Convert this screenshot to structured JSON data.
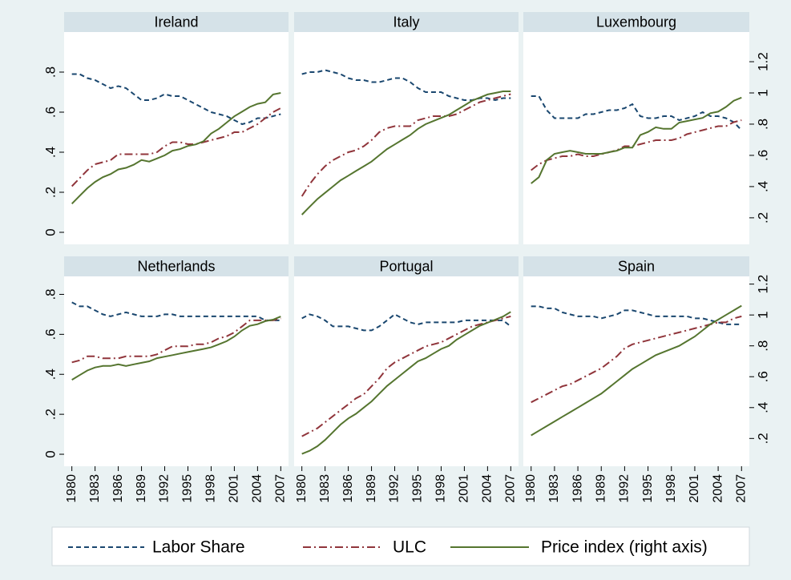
{
  "chart_data": [
    {
      "type": "line",
      "title": "Ireland",
      "x": [
        1980,
        1981,
        1982,
        1983,
        1984,
        1985,
        1986,
        1987,
        1988,
        1989,
        1990,
        1991,
        1992,
        1993,
        1994,
        1995,
        1996,
        1997,
        1998,
        1999,
        2000,
        2001,
        2002,
        2003,
        2004,
        2005,
        2006,
        2007
      ],
      "xlim": [
        1979,
        2008
      ],
      "ylim": [
        -0.06,
        1.0
      ],
      "y2lim": [
        0.03,
        1.39
      ],
      "yticks": [
        0,
        {
          "value": 0.2,
          "label": ".2"
        },
        {
          "value": 0.4,
          "label": ".4"
        },
        {
          "value": 0.6,
          "label": ".6"
        },
        {
          "value": 0.8,
          "label": ".8"
        }
      ],
      "series": [
        {
          "name": "Labor Share",
          "color": "#1a476f",
          "values": [
            0.79,
            0.79,
            0.77,
            0.76,
            0.74,
            0.72,
            0.73,
            0.72,
            0.69,
            0.66,
            0.66,
            0.67,
            0.69,
            0.68,
            0.68,
            0.66,
            0.64,
            0.62,
            0.6,
            0.59,
            0.58,
            0.56,
            0.54,
            0.55,
            0.57,
            0.57,
            0.58,
            0.59
          ]
        },
        {
          "name": "ULC",
          "color": "#90353b",
          "values": [
            0.23,
            0.27,
            0.31,
            0.34,
            0.35,
            0.36,
            0.39,
            0.39,
            0.39,
            0.39,
            0.39,
            0.4,
            0.43,
            0.45,
            0.45,
            0.44,
            0.44,
            0.45,
            0.46,
            0.47,
            0.48,
            0.5,
            0.5,
            0.52,
            0.54,
            0.57,
            0.6,
            0.62
          ]
        },
        {
          "name": "Price index (right axis)",
          "color": "#55752f",
          "axis": "y2",
          "values": [
            0.29,
            0.34,
            0.39,
            0.43,
            0.46,
            0.48,
            0.51,
            0.52,
            0.54,
            0.57,
            0.56,
            0.58,
            0.6,
            0.63,
            0.64,
            0.66,
            0.67,
            0.69,
            0.74,
            0.77,
            0.81,
            0.85,
            0.88,
            0.91,
            0.93,
            0.94,
            0.99,
            1.0
          ]
        }
      ]
    },
    {
      "type": "line",
      "title": "Italy",
      "x": [
        1980,
        1981,
        1982,
        1983,
        1984,
        1985,
        1986,
        1987,
        1988,
        1989,
        1990,
        1991,
        1992,
        1993,
        1994,
        1995,
        1996,
        1997,
        1998,
        1999,
        2000,
        2001,
        2002,
        2003,
        2004,
        2005,
        2006,
        2007
      ],
      "xlim": [
        1979,
        2008
      ],
      "ylim": [
        -0.06,
        1.0
      ],
      "y2lim": [
        0.03,
        1.39
      ],
      "series": [
        {
          "name": "Labor Share",
          "color": "#1a476f",
          "values": [
            0.79,
            0.8,
            0.8,
            0.81,
            0.8,
            0.79,
            0.77,
            0.76,
            0.76,
            0.75,
            0.75,
            0.76,
            0.77,
            0.77,
            0.75,
            0.72,
            0.7,
            0.7,
            0.7,
            0.68,
            0.67,
            0.66,
            0.66,
            0.67,
            0.67,
            0.66,
            0.67,
            0.67
          ]
        },
        {
          "name": "ULC",
          "color": "#90353b",
          "values": [
            0.18,
            0.24,
            0.29,
            0.33,
            0.36,
            0.38,
            0.4,
            0.41,
            0.43,
            0.46,
            0.5,
            0.52,
            0.53,
            0.53,
            0.53,
            0.56,
            0.57,
            0.58,
            0.58,
            0.58,
            0.59,
            0.61,
            0.63,
            0.65,
            0.66,
            0.67,
            0.68,
            0.69
          ]
        },
        {
          "name": "Price index (right axis)",
          "color": "#55752f",
          "axis": "y2",
          "values": [
            0.22,
            0.27,
            0.32,
            0.36,
            0.4,
            0.44,
            0.47,
            0.5,
            0.53,
            0.56,
            0.6,
            0.64,
            0.67,
            0.7,
            0.73,
            0.77,
            0.8,
            0.82,
            0.84,
            0.86,
            0.89,
            0.92,
            0.95,
            0.97,
            0.99,
            1.0,
            1.01,
            1.01
          ]
        }
      ]
    },
    {
      "type": "line",
      "title": "Luxembourg",
      "x": [
        1980,
        1981,
        1982,
        1983,
        1984,
        1985,
        1986,
        1987,
        1988,
        1989,
        1990,
        1991,
        1992,
        1993,
        1994,
        1995,
        1996,
        1997,
        1998,
        1999,
        2000,
        2001,
        2002,
        2003,
        2004,
        2005,
        2006,
        2007
      ],
      "xlim": [
        1979,
        2008
      ],
      "ylim": [
        -0.06,
        1.0
      ],
      "y2lim": [
        0.03,
        1.39
      ],
      "y2ticks": [
        {
          "value": 0.2,
          "label": ".2"
        },
        {
          "value": 0.4,
          "label": ".4"
        },
        {
          "value": 0.6,
          "label": ".6"
        },
        {
          "value": 0.8,
          "label": ".8"
        },
        1,
        1.2
      ],
      "series": [
        {
          "name": "Labor Share",
          "color": "#1a476f",
          "values": [
            0.68,
            0.68,
            0.61,
            0.57,
            0.57,
            0.57,
            0.57,
            0.59,
            0.59,
            0.6,
            0.61,
            0.61,
            0.62,
            0.64,
            0.58,
            0.57,
            0.57,
            0.58,
            0.58,
            0.56,
            0.57,
            0.58,
            0.6,
            0.58,
            0.58,
            0.57,
            0.55,
            0.51
          ]
        },
        {
          "name": "ULC",
          "color": "#90353b",
          "values": [
            0.31,
            0.34,
            0.36,
            0.37,
            0.38,
            0.38,
            0.39,
            0.38,
            0.38,
            0.39,
            0.4,
            0.41,
            0.43,
            0.43,
            0.44,
            0.45,
            0.46,
            0.46,
            0.46,
            0.47,
            0.49,
            0.5,
            0.51,
            0.52,
            0.53,
            0.53,
            0.55,
            0.56
          ]
        },
        {
          "name": "Price index (right axis)",
          "color": "#55752f",
          "axis": "y2",
          "values": [
            0.42,
            0.46,
            0.57,
            0.61,
            0.62,
            0.63,
            0.62,
            0.61,
            0.61,
            0.61,
            0.62,
            0.63,
            0.65,
            0.65,
            0.73,
            0.75,
            0.78,
            0.77,
            0.77,
            0.81,
            0.82,
            0.83,
            0.84,
            0.87,
            0.88,
            0.91,
            0.95,
            0.97
          ]
        }
      ]
    },
    {
      "type": "line",
      "title": "Netherlands",
      "x": [
        1980,
        1981,
        1982,
        1983,
        1984,
        1985,
        1986,
        1987,
        1988,
        1989,
        1990,
        1991,
        1992,
        1993,
        1994,
        1995,
        1996,
        1997,
        1998,
        1999,
        2000,
        2001,
        2002,
        2003,
        2004,
        2005,
        2006,
        2007
      ],
      "xlim": [
        1979,
        2008
      ],
      "ylim": [
        -0.06,
        0.89
      ],
      "y2lim": [
        0.02,
        1.25
      ],
      "xticks": [
        1980,
        1983,
        1986,
        1989,
        1992,
        1995,
        1998,
        2001,
        2004,
        2007
      ],
      "yticks": [
        0,
        {
          "value": 0.2,
          "label": ".2"
        },
        {
          "value": 0.4,
          "label": ".4"
        },
        {
          "value": 0.6,
          "label": ".6"
        },
        {
          "value": 0.8,
          "label": ".8"
        }
      ],
      "series": [
        {
          "name": "Labor Share",
          "color": "#1a476f",
          "values": [
            0.76,
            0.74,
            0.74,
            0.72,
            0.7,
            0.69,
            0.7,
            0.71,
            0.7,
            0.69,
            0.69,
            0.69,
            0.7,
            0.7,
            0.69,
            0.69,
            0.69,
            0.69,
            0.69,
            0.69,
            0.69,
            0.69,
            0.69,
            0.69,
            0.69,
            0.67,
            0.67,
            0.67
          ]
        },
        {
          "name": "ULC",
          "color": "#90353b",
          "values": [
            0.46,
            0.47,
            0.49,
            0.49,
            0.48,
            0.48,
            0.48,
            0.49,
            0.49,
            0.49,
            0.49,
            0.5,
            0.52,
            0.54,
            0.54,
            0.54,
            0.55,
            0.55,
            0.56,
            0.58,
            0.59,
            0.61,
            0.64,
            0.67,
            0.67,
            0.67,
            0.67,
            0.68
          ]
        },
        {
          "name": "Price index (right axis)",
          "color": "#55752f",
          "axis": "y2",
          "values": [
            0.58,
            0.61,
            0.64,
            0.66,
            0.67,
            0.67,
            0.68,
            0.67,
            0.68,
            0.69,
            0.7,
            0.72,
            0.73,
            0.74,
            0.75,
            0.76,
            0.77,
            0.78,
            0.79,
            0.81,
            0.83,
            0.86,
            0.9,
            0.93,
            0.94,
            0.96,
            0.97,
            0.99
          ]
        }
      ]
    },
    {
      "type": "line",
      "title": "Portugal",
      "x": [
        1980,
        1981,
        1982,
        1983,
        1984,
        1985,
        1986,
        1987,
        1988,
        1989,
        1990,
        1991,
        1992,
        1993,
        1994,
        1995,
        1996,
        1997,
        1998,
        1999,
        2000,
        2001,
        2002,
        2003,
        2004,
        2005,
        2006,
        2007
      ],
      "xlim": [
        1979,
        2008
      ],
      "ylim": [
        -0.06,
        0.89
      ],
      "y2lim": [
        0.02,
        1.25
      ],
      "xticks": [
        1980,
        1983,
        1986,
        1989,
        1992,
        1995,
        1998,
        2001,
        2004,
        2007
      ],
      "series": [
        {
          "name": "Labor Share",
          "color": "#1a476f",
          "values": [
            0.68,
            0.7,
            0.69,
            0.67,
            0.64,
            0.64,
            0.64,
            0.63,
            0.62,
            0.62,
            0.64,
            0.67,
            0.7,
            0.68,
            0.66,
            0.65,
            0.66,
            0.66,
            0.66,
            0.66,
            0.66,
            0.67,
            0.67,
            0.67,
            0.67,
            0.67,
            0.67,
            0.64
          ]
        },
        {
          "name": "ULC",
          "color": "#90353b",
          "values": [
            0.09,
            0.11,
            0.13,
            0.16,
            0.19,
            0.22,
            0.25,
            0.28,
            0.3,
            0.34,
            0.38,
            0.43,
            0.46,
            0.48,
            0.5,
            0.52,
            0.54,
            0.55,
            0.56,
            0.58,
            0.6,
            0.62,
            0.64,
            0.65,
            0.66,
            0.67,
            0.68,
            0.69
          ]
        },
        {
          "name": "Price index (right axis)",
          "color": "#55752f",
          "axis": "y2",
          "values": [
            0.1,
            0.12,
            0.15,
            0.19,
            0.24,
            0.29,
            0.33,
            0.36,
            0.4,
            0.44,
            0.49,
            0.54,
            0.58,
            0.62,
            0.66,
            0.7,
            0.72,
            0.75,
            0.78,
            0.8,
            0.84,
            0.87,
            0.9,
            0.93,
            0.95,
            0.97,
            0.99,
            1.02
          ]
        }
      ]
    },
    {
      "type": "line",
      "title": "Spain",
      "x": [
        1980,
        1981,
        1982,
        1983,
        1984,
        1985,
        1986,
        1987,
        1988,
        1989,
        1990,
        1991,
        1992,
        1993,
        1994,
        1995,
        1996,
        1997,
        1998,
        1999,
        2000,
        2001,
        2002,
        2003,
        2004,
        2005,
        2006,
        2007
      ],
      "xlim": [
        1979,
        2008
      ],
      "ylim": [
        -0.06,
        0.89
      ],
      "y2lim": [
        0.02,
        1.25
      ],
      "xticks": [
        1980,
        1983,
        1986,
        1989,
        1992,
        1995,
        1998,
        2001,
        2004,
        2007
      ],
      "y2ticks": [
        {
          "value": 0.2,
          "label": ".2"
        },
        {
          "value": 0.4,
          "label": ".4"
        },
        {
          "value": 0.6,
          "label": ".6"
        },
        {
          "value": 0.8,
          "label": ".8"
        },
        1,
        1.2
      ],
      "series": [
        {
          "name": "Labor Share",
          "color": "#1a476f",
          "values": [
            0.74,
            0.74,
            0.73,
            0.73,
            0.71,
            0.7,
            0.69,
            0.69,
            0.69,
            0.68,
            0.69,
            0.7,
            0.72,
            0.72,
            0.71,
            0.7,
            0.69,
            0.69,
            0.69,
            0.69,
            0.69,
            0.68,
            0.68,
            0.67,
            0.66,
            0.65,
            0.65,
            0.65
          ]
        },
        {
          "name": "ULC",
          "color": "#90353b",
          "values": [
            0.26,
            0.28,
            0.3,
            0.32,
            0.34,
            0.35,
            0.37,
            0.39,
            0.41,
            0.43,
            0.46,
            0.49,
            0.53,
            0.55,
            0.56,
            0.57,
            0.58,
            0.59,
            0.6,
            0.61,
            0.62,
            0.63,
            0.64,
            0.65,
            0.66,
            0.66,
            0.68,
            0.69
          ]
        },
        {
          "name": "Price index (right axis)",
          "color": "#55752f",
          "axis": "y2",
          "values": [
            0.22,
            0.25,
            0.28,
            0.31,
            0.34,
            0.37,
            0.4,
            0.43,
            0.46,
            0.49,
            0.53,
            0.57,
            0.61,
            0.65,
            0.68,
            0.71,
            0.74,
            0.76,
            0.78,
            0.8,
            0.83,
            0.86,
            0.9,
            0.94,
            0.97,
            1.0,
            1.03,
            1.06
          ]
        }
      ]
    }
  ]
}
